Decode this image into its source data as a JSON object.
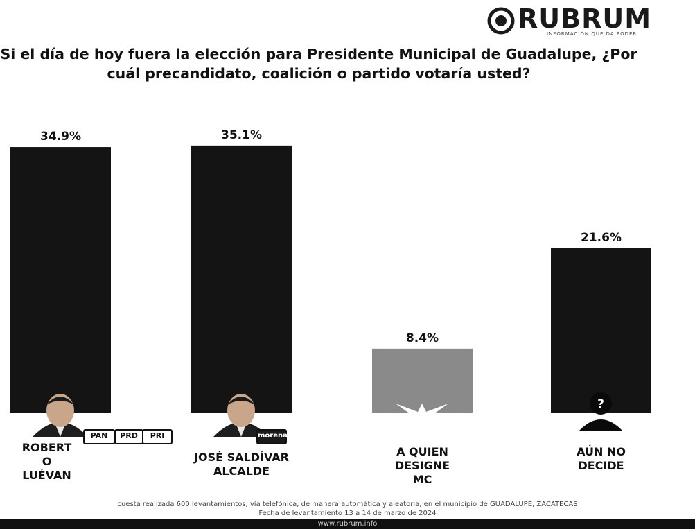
{
  "brand": {
    "name": "RUBRUM",
    "tagline": "INFORMACIÓN QUE DA PODER"
  },
  "colors": {
    "bar_dark": "#141414",
    "bar_mc": "#8a8a8a",
    "background": "#ffffff"
  },
  "chart_data": {
    "type": "bar",
    "title": "Si el día de hoy fuera la elección para Presidente Municipal de Guadalupe, ¿Por cuál precandidato, coalición o partido votaría usted?",
    "categories": [
      "ROBERTO LUÉVANO",
      "JOSÉ SALDÍVAR ALCALDE",
      "A QUIEN DESIGNE MC",
      "AÚN NO DECIDE"
    ],
    "category_label_lines": [
      "ROBERT\nO\nLUÉVAN",
      "JOSÉ SALDÍVAR\nALCALDE",
      "A QUIEN\nDESIGNE\nMC",
      "AÚN NO\nDECIDE"
    ],
    "values": [
      34.9,
      35.1,
      8.4,
      21.6
    ],
    "data_labels": [
      "34.9%",
      "35.1%",
      "8.4%",
      "21.6%"
    ],
    "bar_colors": [
      "#141414",
      "#141414",
      "#8a8a8a",
      "#141414"
    ],
    "icons": [
      "candidate-photo-icon",
      "candidate-photo-icon",
      "movimiento-ciudadano-logo-icon",
      "unknown-person-icon"
    ],
    "party_badges": [
      [
        "PAN",
        "PRD",
        "PRI"
      ],
      [
        "morena"
      ],
      [
        "MOVIMIENTO CIUDADANO"
      ],
      []
    ],
    "ylim": [
      0,
      36
    ],
    "grid": false,
    "legend": "none",
    "xlabel": "",
    "ylabel": ""
  },
  "unknown_mark": "?",
  "footer": {
    "note_line1": "cuesta realizada 600 levantamientos, vía telefónica, de manera automática y aleatoria, en el municipio de GUADALUPE, ZACATECAS",
    "note_line2": "Fecha de levantamiento 13 a 14 de marzo de 2024",
    "url": "www.rubrum.info"
  }
}
